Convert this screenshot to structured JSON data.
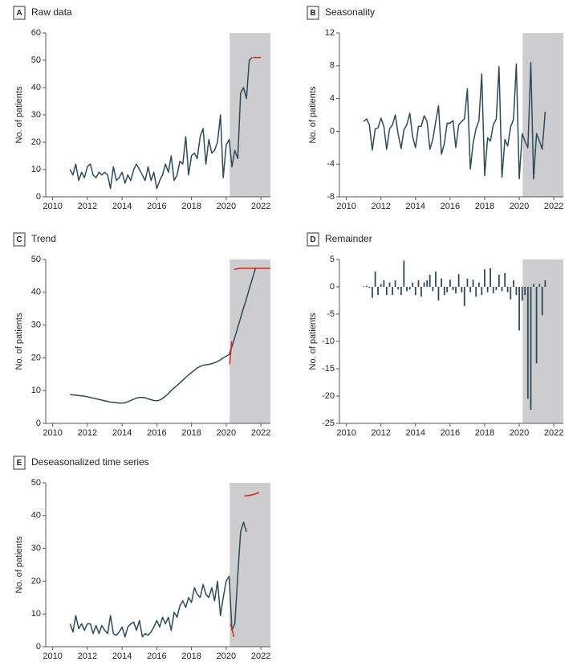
{
  "chart_data": [
    {
      "type": "line",
      "label": "A",
      "title": "Raw data",
      "ylabel": "No. of patients",
      "xlim": [
        2009.6,
        2022.55
      ],
      "xticks": [
        2010,
        2012,
        2014,
        2016,
        2018,
        2020,
        2022
      ],
      "ylim": [
        0,
        60
      ],
      "yticks": [
        0,
        10,
        20,
        30,
        40,
        50,
        60
      ],
      "shaded_xrange": [
        2020.2,
        2022.55
      ],
      "shade_color": "#cdcdcf",
      "series": [
        {
          "color": "#2e4a59",
          "x": [
            2011,
            2011.17,
            2011.33,
            2011.5,
            2011.67,
            2011.83,
            2012,
            2012.17,
            2012.33,
            2012.5,
            2012.67,
            2012.83,
            2013,
            2013.17,
            2013.33,
            2013.5,
            2013.67,
            2013.83,
            2014,
            2014.17,
            2014.33,
            2014.5,
            2014.67,
            2014.83,
            2015,
            2015.17,
            2015.33,
            2015.5,
            2015.67,
            2015.83,
            2016,
            2016.17,
            2016.33,
            2016.5,
            2016.67,
            2016.83,
            2017,
            2017.17,
            2017.33,
            2017.5,
            2017.67,
            2017.83,
            2018,
            2018.17,
            2018.33,
            2018.5,
            2018.67,
            2018.83,
            2019,
            2019.17,
            2019.33,
            2019.5,
            2019.67,
            2019.83,
            2020,
            2020.17,
            2020.33,
            2020.5,
            2020.67,
            2020.83,
            2021,
            2021.17,
            2021.33,
            2021.5
          ],
          "values": [
            10,
            8,
            12,
            6,
            9,
            7,
            11,
            12,
            8,
            7,
            9,
            8,
            9,
            8,
            3,
            11,
            6,
            7,
            9,
            5,
            8,
            6,
            10,
            12,
            10,
            8,
            6,
            11,
            6,
            9,
            3,
            6,
            8,
            12,
            9,
            15,
            6,
            8,
            13,
            12,
            22,
            8,
            15,
            16,
            14,
            22,
            25,
            12,
            21,
            16,
            17,
            20,
            30,
            7,
            19,
            21,
            11,
            17,
            14,
            38,
            40,
            36,
            50,
            51
          ]
        },
        {
          "color": "#e0231c",
          "x": [
            2021.55,
            2022.0
          ],
          "values": [
            51,
            51
          ]
        }
      ]
    },
    {
      "type": "line",
      "label": "B",
      "title": "Seasonality",
      "ylabel": "No. of patients",
      "xlim": [
        2009.6,
        2022.55
      ],
      "xticks": [
        2010,
        2012,
        2014,
        2016,
        2018,
        2020,
        2022
      ],
      "ylim": [
        -8,
        12
      ],
      "yticks": [
        -8,
        -4,
        0,
        4,
        8,
        12
      ],
      "shaded_xrange": [
        2020.2,
        2022.55
      ],
      "shade_color": "#cdcdcf",
      "series": [
        {
          "color": "#2e4a59",
          "x": [
            2011,
            2011.17,
            2011.33,
            2011.5,
            2011.67,
            2011.83,
            2012,
            2012.17,
            2012.33,
            2012.5,
            2012.67,
            2012.83,
            2013,
            2013.17,
            2013.33,
            2013.5,
            2013.67,
            2013.83,
            2014,
            2014.17,
            2014.33,
            2014.5,
            2014.67,
            2014.83,
            2015,
            2015.17,
            2015.33,
            2015.5,
            2015.67,
            2015.83,
            2016,
            2016.17,
            2016.33,
            2016.5,
            2016.67,
            2016.83,
            2017,
            2017.17,
            2017.33,
            2017.5,
            2017.67,
            2017.83,
            2018,
            2018.17,
            2018.33,
            2018.5,
            2018.67,
            2018.83,
            2019,
            2019.17,
            2019.33,
            2019.5,
            2019.67,
            2019.83,
            2020,
            2020.17,
            2020.33,
            2020.5,
            2020.67,
            2020.83,
            2021,
            2021.17,
            2021.33,
            2021.5
          ],
          "values": [
            1.2,
            1.5,
            0.8,
            -2.3,
            0.3,
            0.4,
            1.6,
            0.6,
            -2.2,
            0.3,
            0.8,
            2.0,
            -0.4,
            -2.1,
            0.2,
            0.8,
            2.2,
            -0.6,
            -2.0,
            0.6,
            0.6,
            1.9,
            1.2,
            -2.2,
            -1.0,
            1.2,
            3.1,
            -2.8,
            -1.5,
            1.0,
            1.0,
            1.3,
            -2.0,
            0.8,
            1.2,
            1.5,
            5.2,
            -4.6,
            -1.5,
            0.3,
            1.3,
            7.0,
            -5.4,
            -0.8,
            -1.2,
            0.8,
            1.5,
            7.9,
            -5.6,
            -1.0,
            -1.8,
            0.5,
            1.5,
            8.2,
            -5.8,
            -0.3,
            -1.2,
            -2.0,
            8.4,
            -5.8,
            -0.3,
            -1.2,
            -2.2,
            2.4
          ]
        }
      ]
    },
    {
      "type": "line",
      "label": "C",
      "title": "Trend",
      "ylabel": "No. of patients",
      "xlim": [
        2009.6,
        2022.55
      ],
      "xticks": [
        2010,
        2012,
        2014,
        2016,
        2018,
        2020,
        2022
      ],
      "ylim": [
        0,
        50
      ],
      "yticks": [
        0,
        10,
        20,
        30,
        40,
        50
      ],
      "shaded_xrange": [
        2020.2,
        2022.55
      ],
      "shade_color": "#cdcdcf",
      "series": [
        {
          "color": "#2e4a59",
          "x": [
            2011,
            2011.17,
            2011.33,
            2011.5,
            2011.67,
            2011.83,
            2012,
            2012.17,
            2012.33,
            2012.5,
            2012.67,
            2012.83,
            2013,
            2013.17,
            2013.33,
            2013.5,
            2013.67,
            2013.83,
            2014,
            2014.17,
            2014.33,
            2014.5,
            2014.67,
            2014.83,
            2015,
            2015.17,
            2015.33,
            2015.5,
            2015.67,
            2015.83,
            2016,
            2016.17,
            2016.33,
            2016.5,
            2016.67,
            2016.83,
            2017,
            2017.17,
            2017.33,
            2017.5,
            2017.67,
            2017.83,
            2018,
            2018.17,
            2018.33,
            2018.5,
            2018.67,
            2018.83,
            2019,
            2019.17,
            2019.33,
            2019.5,
            2019.67,
            2019.83,
            2020,
            2020.17,
            2020.33,
            2020.5,
            2020.67,
            2020.83,
            2021,
            2021.17,
            2021.33,
            2021.5,
            2021.7
          ],
          "values": [
            8.8,
            8.7,
            8.6,
            8.5,
            8.4,
            8.3,
            8.1,
            7.9,
            7.7,
            7.5,
            7.3,
            7.1,
            6.9,
            6.7,
            6.5,
            6.4,
            6.3,
            6.2,
            6.2,
            6.3,
            6.6,
            7.0,
            7.4,
            7.7,
            7.9,
            7.9,
            7.8,
            7.5,
            7.2,
            7.0,
            6.9,
            7.1,
            7.6,
            8.3,
            9.1,
            10.0,
            10.8,
            11.6,
            12.4,
            13.2,
            14.0,
            14.8,
            15.5,
            16.2,
            16.9,
            17.4,
            17.7,
            17.9,
            18.0,
            18.2,
            18.5,
            18.9,
            19.4,
            20.0,
            20.5,
            21.0,
            23.4,
            26.3,
            29.3,
            32.2,
            35.2,
            38.1,
            41.0,
            44.0,
            47.5
          ]
        },
        {
          "color": "#e0231c",
          "x": [
            2020.2,
            2020.32
          ],
          "values": [
            18,
            25
          ]
        },
        {
          "color": "#e0231c",
          "x": [
            2020.45,
            2020.8,
            2022.55
          ],
          "values": [
            47,
            47.3,
            47.3
          ]
        }
      ]
    },
    {
      "type": "bar",
      "label": "D",
      "title": "Remainder",
      "ylabel": "No. of patients",
      "color": "#2e4a59",
      "xlim": [
        2009.6,
        2022.55
      ],
      "xticks": [
        2010,
        2012,
        2014,
        2016,
        2018,
        2020,
        2022
      ],
      "ylim": [
        -25,
        5
      ],
      "yticks": [
        -25,
        -20,
        -15,
        -10,
        -5,
        0,
        5
      ],
      "shaded_xrange": [
        2020.2,
        2022.55
      ],
      "shade_color": "#cdcdcf",
      "x": [
        2011,
        2011.17,
        2011.33,
        2011.5,
        2011.67,
        2011.83,
        2012,
        2012.17,
        2012.33,
        2012.5,
        2012.67,
        2012.83,
        2013,
        2013.17,
        2013.33,
        2013.5,
        2013.67,
        2013.83,
        2014,
        2014.17,
        2014.33,
        2014.5,
        2014.67,
        2014.83,
        2015,
        2015.17,
        2015.33,
        2015.5,
        2015.67,
        2015.83,
        2016,
        2016.17,
        2016.33,
        2016.5,
        2016.67,
        2016.83,
        2017,
        2017.17,
        2017.33,
        2017.5,
        2017.67,
        2017.83,
        2018,
        2018.17,
        2018.33,
        2018.5,
        2018.67,
        2018.83,
        2019,
        2019.17,
        2019.33,
        2019.5,
        2019.67,
        2019.83,
        2020,
        2020.17,
        2020.33,
        2020.5,
        2020.67,
        2020.83,
        2021,
        2021.17,
        2021.33,
        2021.5
      ],
      "values": [
        0.1,
        0.2,
        -0.2,
        -2.0,
        2.8,
        -1.5,
        0.5,
        1.2,
        -1.5,
        0.8,
        -1.5,
        1.2,
        -0.5,
        -1.5,
        4.8,
        -0.8,
        -0.5,
        0.8,
        -1.5,
        1.2,
        -1.8,
        0.8,
        1.2,
        2.2,
        -0.8,
        2.8,
        -2.5,
        1.5,
        -1.5,
        -1.0,
        1.3,
        -0.6,
        -1.2,
        2.3,
        -1.0,
        -3.5,
        1.5,
        -1.0,
        1.3,
        -1.8,
        0.8,
        -1.5,
        3.2,
        -1.0,
        3.4,
        -1.2,
        -0.6,
        2.2,
        -0.8,
        2.5,
        -1.0,
        -2.3,
        1.2,
        -1.5,
        -8.0,
        -2.5,
        -1.5,
        -20.5,
        -22.5,
        0.5,
        -14.0,
        0.5,
        -5.2,
        1.2
      ]
    },
    {
      "type": "line",
      "label": "E",
      "title": "Deseasonalized time series",
      "ylabel": "No. of patients",
      "xlim": [
        2009.6,
        2022.55
      ],
      "xticks": [
        2010,
        2012,
        2014,
        2016,
        2018,
        2020,
        2022
      ],
      "ylim": [
        0,
        50
      ],
      "yticks": [
        0,
        10,
        20,
        30,
        40,
        50
      ],
      "shaded_xrange": [
        2020.2,
        2022.55
      ],
      "shade_color": "#cdcdcf",
      "series": [
        {
          "color": "#2e4a59",
          "x": [
            2011,
            2011.17,
            2011.33,
            2011.5,
            2011.67,
            2011.83,
            2012,
            2012.17,
            2012.33,
            2012.5,
            2012.67,
            2012.83,
            2013,
            2013.17,
            2013.33,
            2013.5,
            2013.67,
            2013.83,
            2014,
            2014.17,
            2014.33,
            2014.5,
            2014.67,
            2014.83,
            2015,
            2015.17,
            2015.33,
            2015.5,
            2015.67,
            2015.83,
            2016,
            2016.17,
            2016.33,
            2016.5,
            2016.67,
            2016.83,
            2017,
            2017.17,
            2017.33,
            2017.5,
            2017.67,
            2017.83,
            2018,
            2018.17,
            2018.33,
            2018.5,
            2018.67,
            2018.83,
            2019,
            2019.17,
            2019.33,
            2019.5,
            2019.67,
            2019.83,
            2020,
            2020.17,
            2020.33,
            2020.5,
            2020.67,
            2020.83,
            2021,
            2021.17
          ],
          "values": [
            7,
            4.5,
            9.5,
            5.5,
            7,
            5,
            7,
            7,
            4,
            6.5,
            4,
            6.5,
            5,
            4,
            9.5,
            4,
            3.5,
            4.5,
            6,
            3,
            6,
            7,
            7.5,
            5,
            8,
            3,
            4,
            3.5,
            4.5,
            6,
            8,
            6,
            9,
            7,
            9,
            5,
            10.5,
            9,
            12.5,
            14,
            12,
            15,
            13.5,
            18,
            16,
            15,
            19,
            16,
            15,
            18,
            14,
            20,
            9.5,
            15,
            20,
            21.5,
            5,
            7,
            22,
            35,
            38,
            35
          ]
        },
        {
          "color": "#e0231c",
          "x": [
            2020.25,
            2020.35,
            2020.45
          ],
          "values": [
            7,
            5,
            3
          ]
        },
        {
          "color": "#e0231c",
          "x": [
            2021.05,
            2021.4,
            2021.9
          ],
          "values": [
            46,
            46.2,
            47
          ]
        }
      ]
    }
  ]
}
